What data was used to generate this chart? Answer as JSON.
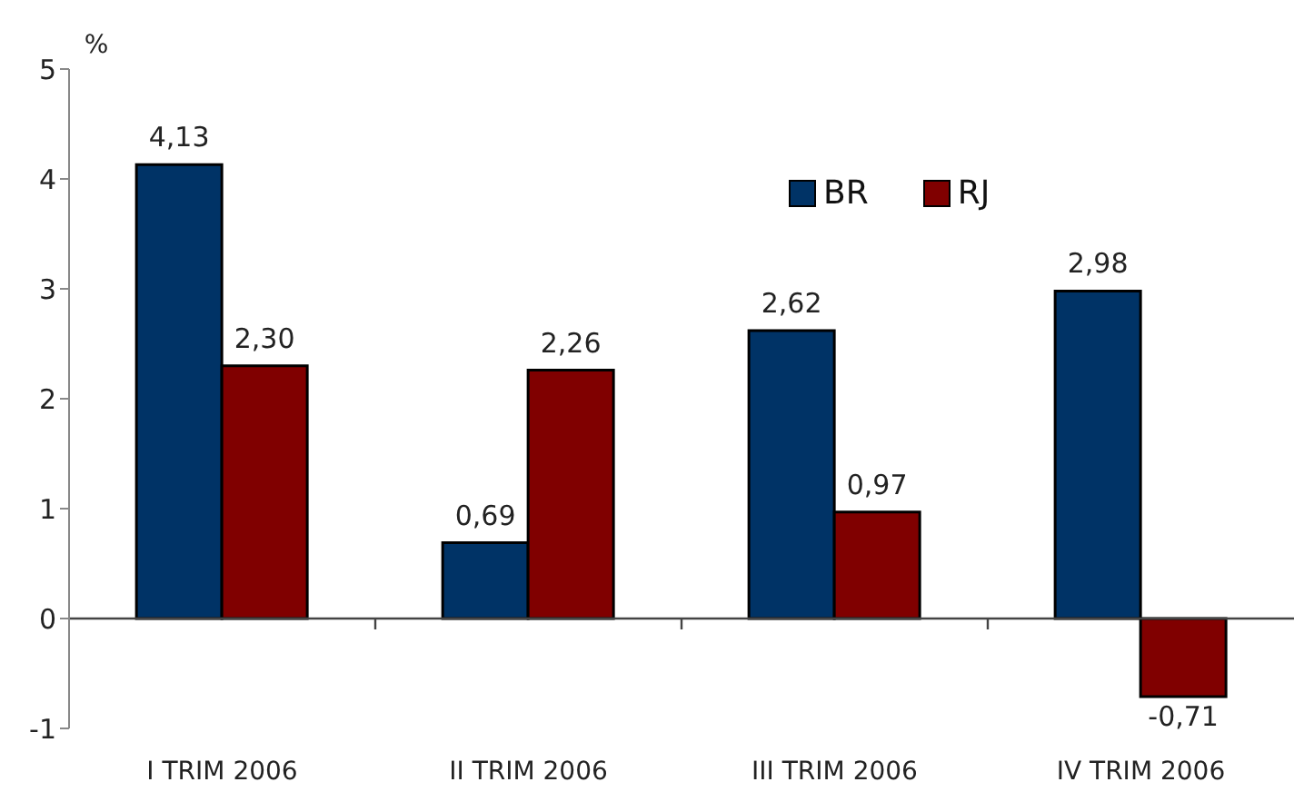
{
  "chart_data": {
    "type": "bar",
    "ylabel": "%",
    "categories": [
      "I TRIM 2006",
      "II TRIM 2006",
      "III TRIM 2006",
      "IV TRIM 2006"
    ],
    "series": [
      {
        "name": "BR",
        "color": "#003366",
        "values": [
          4.13,
          0.69,
          2.62,
          2.98
        ],
        "value_labels": [
          "4,13",
          "0,69",
          "2,62",
          "2,98"
        ]
      },
      {
        "name": "RJ",
        "color": "#800000",
        "values": [
          2.3,
          2.26,
          0.97,
          -0.71
        ],
        "value_labels": [
          "2,30",
          "2,26",
          "0,97",
          "-0,71"
        ]
      }
    ],
    "ylim": [
      -1,
      5
    ],
    "yticks": [
      -1,
      0,
      1,
      2,
      3,
      4,
      5
    ],
    "grid": false,
    "legend": "top right",
    "ref_lines": [
      {
        "axis": "y",
        "value": 0,
        "color": "#444444"
      }
    ]
  }
}
